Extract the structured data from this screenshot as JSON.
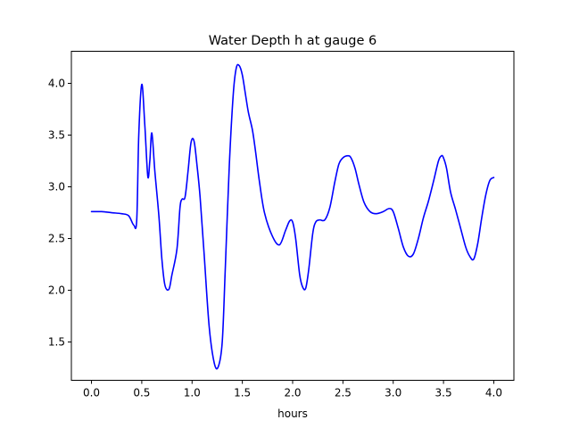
{
  "chart_data": {
    "type": "line",
    "title": "Water Depth h at gauge 6",
    "xlabel": "hours",
    "ylabel": "",
    "xlim": [
      -0.2,
      4.2
    ],
    "ylim": [
      1.13,
      4.31
    ],
    "xticks": [
      0.0,
      0.5,
      1.0,
      1.5,
      2.0,
      2.5,
      3.0,
      3.5,
      4.0
    ],
    "xtick_labels": [
      "0.0",
      "0.5",
      "1.0",
      "1.5",
      "2.0",
      "2.5",
      "3.0",
      "3.5",
      "4.0"
    ],
    "yticks": [
      1.5,
      2.0,
      2.5,
      3.0,
      3.5,
      4.0
    ],
    "ytick_labels": [
      "1.5",
      "2.0",
      "2.5",
      "3.0",
      "3.5",
      "4.0"
    ],
    "grid": false,
    "series": [
      {
        "color": "#0000ff",
        "x": [
          0.0,
          0.1,
          0.2,
          0.3,
          0.37,
          0.42,
          0.45,
          0.47,
          0.5,
          0.53,
          0.56,
          0.58,
          0.6,
          0.63,
          0.67,
          0.7,
          0.73,
          0.77,
          0.8,
          0.85,
          0.88,
          0.9,
          0.93,
          0.96,
          0.99,
          1.02,
          1.05,
          1.08,
          1.12,
          1.17,
          1.22,
          1.26,
          1.3,
          1.33,
          1.37,
          1.41,
          1.44,
          1.47,
          1.5,
          1.53,
          1.56,
          1.6,
          1.63,
          1.67,
          1.72,
          1.8,
          1.87,
          1.93,
          1.97,
          2.0,
          2.03,
          2.07,
          2.1,
          2.13,
          2.16,
          2.2,
          2.23,
          2.27,
          2.32,
          2.37,
          2.42,
          2.46,
          2.5,
          2.55,
          2.58,
          2.62,
          2.66,
          2.71,
          2.77,
          2.83,
          2.9,
          2.96,
          3.0,
          3.05,
          3.1,
          3.15,
          3.2,
          3.25,
          3.3,
          3.35,
          3.4,
          3.45,
          3.48,
          3.5,
          3.53,
          3.57,
          3.62,
          3.67,
          3.72,
          3.76,
          3.8,
          3.84,
          3.88,
          3.92,
          3.96,
          4.0
        ],
        "y": [
          2.76,
          2.76,
          2.75,
          2.74,
          2.72,
          2.63,
          2.68,
          3.5,
          3.99,
          3.6,
          3.1,
          3.25,
          3.52,
          3.15,
          2.72,
          2.3,
          2.05,
          2.01,
          2.15,
          2.4,
          2.8,
          2.88,
          2.9,
          3.15,
          3.43,
          3.44,
          3.2,
          2.9,
          2.35,
          1.65,
          1.3,
          1.26,
          1.5,
          2.2,
          3.2,
          3.9,
          4.15,
          4.17,
          4.08,
          3.9,
          3.72,
          3.55,
          3.35,
          3.05,
          2.75,
          2.52,
          2.44,
          2.58,
          2.67,
          2.66,
          2.5,
          2.15,
          2.03,
          2.02,
          2.2,
          2.55,
          2.66,
          2.68,
          2.68,
          2.8,
          3.05,
          3.22,
          3.28,
          3.3,
          3.28,
          3.18,
          3.02,
          2.85,
          2.76,
          2.74,
          2.76,
          2.79,
          2.76,
          2.6,
          2.42,
          2.33,
          2.35,
          2.5,
          2.7,
          2.86,
          3.05,
          3.25,
          3.3,
          3.28,
          3.18,
          2.95,
          2.78,
          2.6,
          2.42,
          2.33,
          2.3,
          2.45,
          2.7,
          2.92,
          3.06,
          3.09
        ]
      }
    ]
  }
}
